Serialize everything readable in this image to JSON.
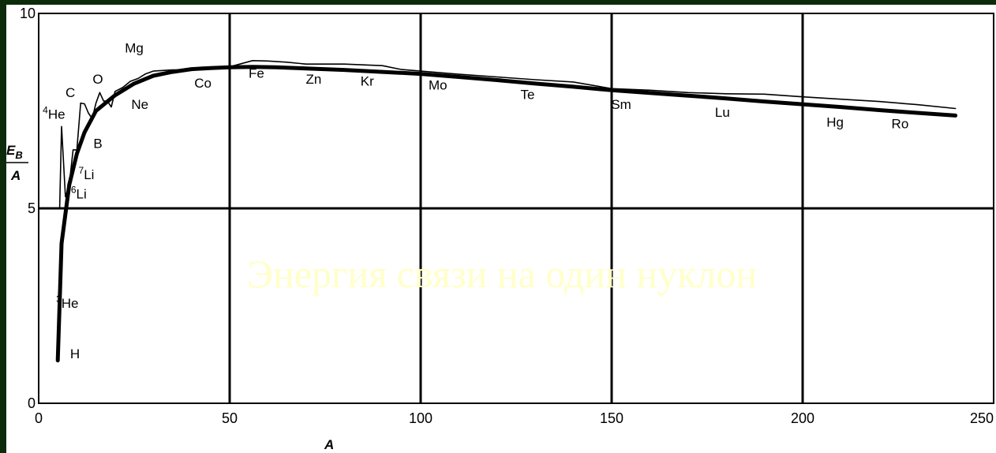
{
  "chart_data": {
    "type": "line",
    "title": "Энергия связи на один нуклон",
    "xlabel": "A",
    "ylabel": "E_B / A",
    "ylabel_parts": {
      "num_main": "E",
      "num_sub": "B",
      "den": "A"
    },
    "xlim": [
      0,
      250
    ],
    "ylim": [
      0,
      10
    ],
    "xticks": [
      0,
      50,
      100,
      150,
      200,
      250
    ],
    "yticks": [
      0,
      5,
      10
    ],
    "grid": true,
    "colors": {
      "curve": "#000000",
      "grid": "#000000",
      "title": "#ffffc8",
      "background": "#0b2b0b"
    },
    "series": [
      {
        "role": "trend",
        "x": [
          5,
          6,
          8,
          10,
          12,
          15,
          20,
          25,
          30,
          35,
          40,
          45,
          50,
          56,
          62,
          70,
          80,
          90,
          100,
          110,
          120,
          130,
          140,
          150,
          160,
          170,
          180,
          190,
          200,
          210,
          220,
          230,
          240
        ],
        "y": [
          1.1,
          4.1,
          5.6,
          6.4,
          6.95,
          7.5,
          7.9,
          8.2,
          8.4,
          8.5,
          8.57,
          8.6,
          8.62,
          8.63,
          8.62,
          8.59,
          8.55,
          8.5,
          8.45,
          8.37,
          8.29,
          8.2,
          8.12,
          8.03,
          7.96,
          7.89,
          7.82,
          7.74,
          7.67,
          7.6,
          7.52,
          7.45,
          7.38
        ]
      },
      {
        "role": "measured",
        "x": [
          5.5,
          6,
          7,
          8,
          9,
          10,
          11,
          12,
          13,
          14,
          15,
          16,
          17,
          18,
          19,
          20,
          22,
          24,
          26,
          28,
          30,
          35,
          40,
          45,
          50,
          56,
          60,
          65,
          70,
          80,
          90,
          95,
          100,
          110,
          120,
          130,
          140,
          150,
          160,
          170,
          180,
          190,
          200,
          210,
          220,
          230,
          240
        ],
        "y": [
          5.0,
          7.1,
          5.3,
          5.6,
          6.5,
          6.5,
          7.7,
          7.68,
          7.45,
          7.3,
          7.7,
          7.97,
          7.75,
          7.75,
          7.6,
          8.0,
          8.1,
          8.26,
          8.33,
          8.45,
          8.52,
          8.55,
          8.55,
          8.57,
          8.63,
          8.79,
          8.78,
          8.75,
          8.7,
          8.7,
          8.66,
          8.56,
          8.52,
          8.44,
          8.37,
          8.3,
          8.24,
          8.07,
          8.03,
          7.97,
          7.94,
          7.93,
          7.86,
          7.8,
          7.74,
          7.66,
          7.56
        ]
      }
    ],
    "annotations": [
      {
        "label": "H",
        "sup": "",
        "x": 9.5,
        "y": 1.15
      },
      {
        "label": "He",
        "sup": "3",
        "x": 7.5,
        "y": 2.45
      },
      {
        "label": "Li",
        "sup": "6",
        "x": 10.5,
        "y": 5.25
      },
      {
        "label": "Li",
        "sup": "7",
        "x": 12.5,
        "y": 5.75
      },
      {
        "label": "B",
        "sup": "",
        "x": 15.5,
        "y": 6.55
      },
      {
        "label": "He",
        "sup": "4",
        "x": 4.0,
        "y": 7.3
      },
      {
        "label": "C",
        "sup": "",
        "x": 8.3,
        "y": 7.85
      },
      {
        "label": "O",
        "sup": "",
        "x": 15.5,
        "y": 8.2
      },
      {
        "label": "Ne",
        "sup": "",
        "x": 26.5,
        "y": 7.55
      },
      {
        "label": "Mg",
        "sup": "",
        "x": 25.0,
        "y": 9.0
      },
      {
        "label": "Co",
        "sup": "",
        "x": 43.0,
        "y": 8.1
      },
      {
        "label": "Fe",
        "sup": "",
        "x": 57.0,
        "y": 8.35
      },
      {
        "label": "Zn",
        "sup": "",
        "x": 72.0,
        "y": 8.2
      },
      {
        "label": "Kr",
        "sup": "",
        "x": 86.0,
        "y": 8.15
      },
      {
        "label": "Mo",
        "sup": "",
        "x": 104.5,
        "y": 8.05
      },
      {
        "label": "Te",
        "sup": "",
        "x": 128.0,
        "y": 7.8
      },
      {
        "label": "Sm",
        "sup": "",
        "x": 152.5,
        "y": 7.55
      },
      {
        "label": "Lu",
        "sup": "",
        "x": 179.0,
        "y": 7.35
      },
      {
        "label": "Hg",
        "sup": "",
        "x": 208.5,
        "y": 7.1
      },
      {
        "label": "Ro",
        "sup": "",
        "x": 225.5,
        "y": 7.05
      }
    ]
  }
}
